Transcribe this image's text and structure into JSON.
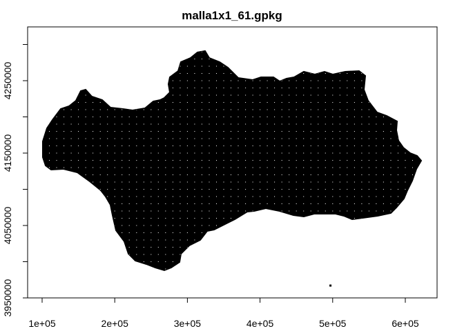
{
  "map": {
    "title": "malla1x1_61.gpkg",
    "region_fill": "#000000",
    "grid_dot_color": "#ffffff",
    "background": "#ffffff",
    "frame_color": "#000000"
  },
  "chart_data": {
    "type": "scatter",
    "title": "malla1x1_61.gpkg",
    "xlabel": "",
    "ylabel": "",
    "xlim": [
      90000,
      640000
    ],
    "ylim": [
      3940000,
      4315000
    ],
    "x_ticks": [
      {
        "value": 100000,
        "label": "1e+05"
      },
      {
        "value": 200000,
        "label": "2e+05"
      },
      {
        "value": 300000,
        "label": "3e+05"
      },
      {
        "value": 400000,
        "label": "4e+05"
      },
      {
        "value": 500000,
        "label": "5e+05"
      },
      {
        "value": 600000,
        "label": "6e+05"
      }
    ],
    "y_ticks": [
      {
        "value": 3950000,
        "label": "3950000"
      },
      {
        "value": 4000000,
        "label": ""
      },
      {
        "value": 4050000,
        "label": "4050000"
      },
      {
        "value": 4100000,
        "label": ""
      },
      {
        "value": 4150000,
        "label": "4150000"
      },
      {
        "value": 4200000,
        "label": ""
      },
      {
        "value": 4250000,
        "label": "4250000"
      },
      {
        "value": 4300000,
        "label": ""
      }
    ],
    "grid": false,
    "legend": "none",
    "isolated_point": {
      "x": 497000,
      "y": 3967000
    }
  }
}
